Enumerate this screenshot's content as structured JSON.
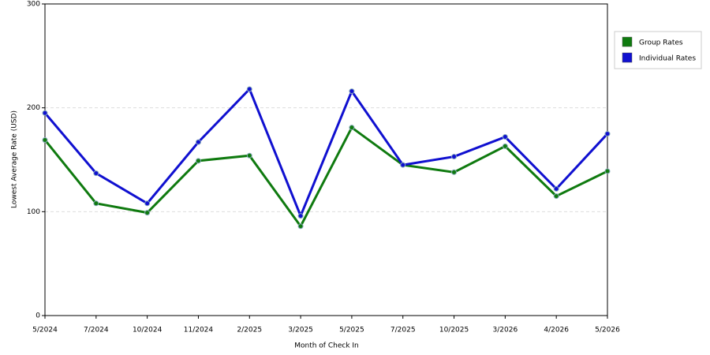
{
  "chart_data": {
    "type": "line",
    "x_label": "Month of Check In",
    "y_label": "Lowest Average Rate (USD)",
    "categories": [
      "5/2024",
      "7/2024",
      "10/2024",
      "11/2024",
      "2/2025",
      "3/2025",
      "5/2025",
      "7/2025",
      "10/2025",
      "3/2026",
      "4/2026",
      "5/2026"
    ],
    "series": [
      {
        "name": "Group Rates",
        "color": "#0f7a0f",
        "values": [
          169,
          108,
          99,
          149,
          154,
          86,
          181,
          145,
          138,
          163,
          115,
          139
        ]
      },
      {
        "name": "Individual Rates",
        "color": "#1010d0",
        "values": [
          195,
          137,
          108,
          167,
          218,
          96,
          216,
          145,
          153,
          172,
          122,
          175
        ]
      }
    ],
    "ylim": [
      0,
      300
    ],
    "yticks": [
      0,
      100,
      200,
      300
    ],
    "grid": true,
    "legend": "right"
  }
}
